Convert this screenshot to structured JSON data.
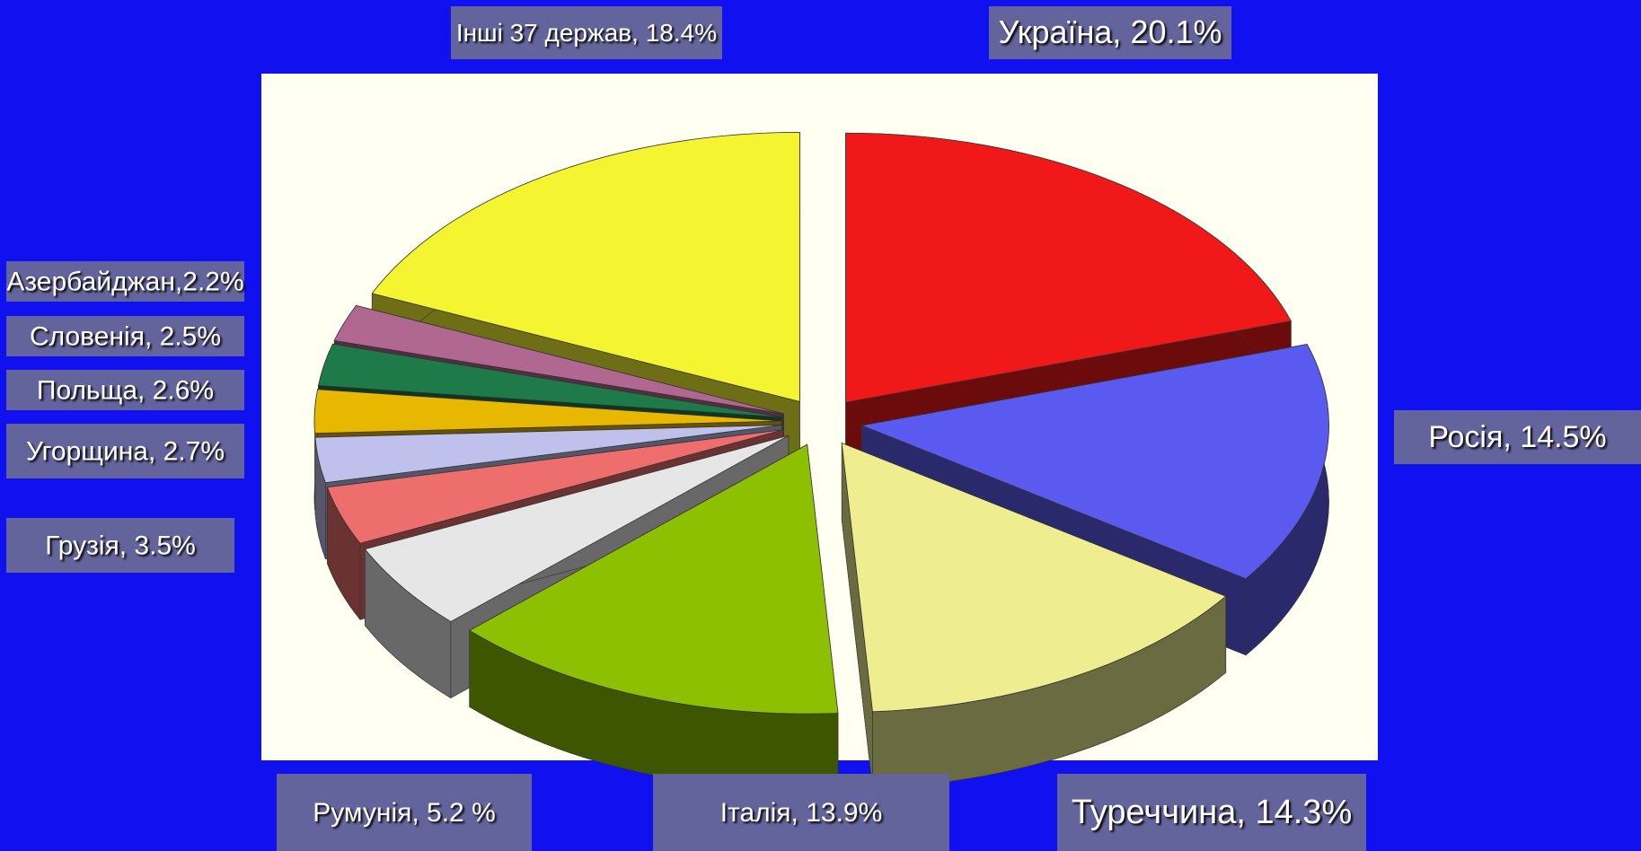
{
  "chart_data": {
    "type": "pie",
    "categories": [
      "Україна, 20.1%",
      "Росія, 14.5%",
      "Туреччина, 14.3%",
      "Італія, 13.9%",
      "Румунія, 5.2 %",
      "Грузія, 3.5%",
      "Угорщина, 2.7%",
      "Польща, 2.6%",
      "Словенія, 2.5%",
      "Азербайджан,2.2%",
      "Інші 37 держав, 18.4%"
    ],
    "values": [
      20.1,
      14.5,
      14.3,
      13.9,
      5.2,
      3.5,
      2.7,
      2.6,
      2.5,
      2.2,
      18.4
    ],
    "colors": [
      "#f01818",
      "#5a5af0",
      "#eeee90",
      "#8cc000",
      "#e6e6e6",
      "#ee6e6e",
      "#c0c0ec",
      "#e8b800",
      "#1f7a4a",
      "#b06890",
      "#f4f430"
    ]
  }
}
